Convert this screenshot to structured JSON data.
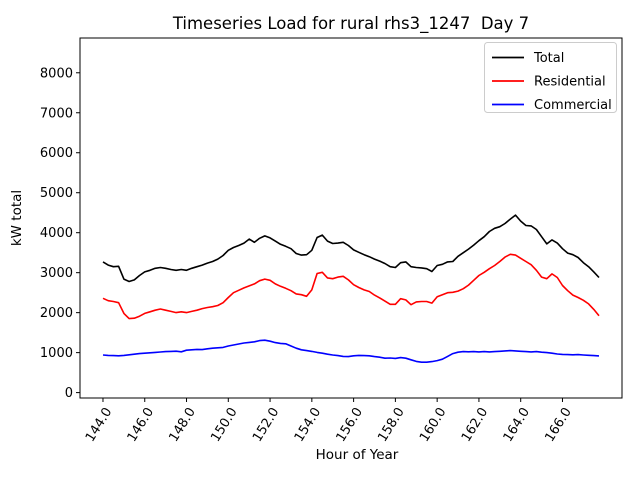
{
  "title": "Timeseries Load for rural rhs3_1247  Day 7",
  "chart_data": {
    "type": "line",
    "title": "Timeseries Load for rural rhs3_1247  Day 7",
    "xlabel": "Hour of Year",
    "ylabel": "kW total",
    "xlim": [
      142.9,
      168.85
    ],
    "ylim": [
      -135,
      8870
    ],
    "grid": false,
    "legend_position": "upper right",
    "xticks": {
      "values": [
        144,
        146,
        148,
        150,
        152,
        154,
        156,
        158,
        160,
        162,
        164,
        166
      ],
      "labels": [
        "144.0",
        "146.0",
        "148.0",
        "150.0",
        "152.0",
        "154.0",
        "156.0",
        "158.0",
        "160.0",
        "162.0",
        "164.0",
        "166.0"
      ]
    },
    "yticks": {
      "values": [
        0,
        1000,
        2000,
        3000,
        4000,
        5000,
        6000,
        7000,
        8000
      ],
      "labels": [
        "0",
        "1000",
        "2000",
        "3000",
        "4000",
        "5000",
        "6000",
        "7000",
        "8000"
      ]
    },
    "x_start": 144.0,
    "x_step": 0.25,
    "series": [
      {
        "name": "Total",
        "color": "#000000",
        "values": [
          3270,
          3190,
          3150,
          3160,
          2840,
          2780,
          2820,
          2930,
          3020,
          3060,
          3110,
          3130,
          3110,
          3080,
          3060,
          3080,
          3060,
          3110,
          3150,
          3190,
          3240,
          3280,
          3340,
          3430,
          3560,
          3630,
          3680,
          3740,
          3840,
          3760,
          3860,
          3920,
          3870,
          3790,
          3710,
          3660,
          3600,
          3480,
          3440,
          3450,
          3560,
          3880,
          3940,
          3790,
          3730,
          3740,
          3760,
          3680,
          3570,
          3510,
          3450,
          3400,
          3340,
          3290,
          3230,
          3150,
          3130,
          3250,
          3270,
          3150,
          3130,
          3120,
          3100,
          3030,
          3180,
          3210,
          3270,
          3280,
          3410,
          3500,
          3590,
          3690,
          3800,
          3900,
          4030,
          4110,
          4150,
          4230,
          4340,
          4440,
          4290,
          4180,
          4170,
          4080,
          3900,
          3720,
          3820,
          3740,
          3600,
          3490,
          3450,
          3380,
          3250,
          3150,
          3020,
          2880
        ]
      },
      {
        "name": "Residential",
        "color": "#ff0000",
        "values": [
          2360,
          2300,
          2280,
          2250,
          1980,
          1850,
          1860,
          1910,
          1980,
          2020,
          2060,
          2090,
          2060,
          2030,
          2000,
          2020,
          2000,
          2030,
          2060,
          2100,
          2130,
          2150,
          2180,
          2250,
          2380,
          2500,
          2560,
          2620,
          2670,
          2720,
          2800,
          2840,
          2810,
          2720,
          2660,
          2610,
          2550,
          2470,
          2450,
          2410,
          2570,
          2980,
          3010,
          2870,
          2850,
          2890,
          2910,
          2820,
          2700,
          2630,
          2570,
          2530,
          2440,
          2370,
          2290,
          2210,
          2210,
          2350,
          2320,
          2200,
          2270,
          2280,
          2280,
          2240,
          2400,
          2450,
          2500,
          2510,
          2540,
          2600,
          2690,
          2810,
          2930,
          3010,
          3100,
          3180,
          3280,
          3390,
          3460,
          3440,
          3360,
          3280,
          3200,
          3060,
          2890,
          2850,
          2970,
          2880,
          2680,
          2550,
          2440,
          2380,
          2310,
          2220,
          2080,
          1920
        ]
      },
      {
        "name": "Commercial",
        "color": "#0000ff",
        "values": [
          940,
          930,
          925,
          920,
          930,
          945,
          960,
          975,
          985,
          995,
          1005,
          1015,
          1025,
          1030,
          1035,
          1020,
          1060,
          1070,
          1080,
          1075,
          1095,
          1110,
          1120,
          1130,
          1165,
          1190,
          1215,
          1240,
          1255,
          1270,
          1300,
          1310,
          1285,
          1250,
          1230,
          1220,
          1165,
          1110,
          1070,
          1050,
          1030,
          1005,
          985,
          960,
          940,
          925,
          905,
          900,
          920,
          930,
          925,
          920,
          900,
          885,
          860,
          865,
          855,
          875,
          860,
          820,
          780,
          760,
          760,
          775,
          800,
          835,
          905,
          975,
          1010,
          1025,
          1020,
          1025,
          1018,
          1025,
          1018,
          1025,
          1033,
          1042,
          1050,
          1042,
          1033,
          1025,
          1018,
          1025,
          1010,
          1000,
          985,
          965,
          955,
          950,
          945,
          950,
          940,
          933,
          925,
          918
        ]
      }
    ]
  },
  "legend": {
    "entries": [
      {
        "label": "Total",
        "color": "#000000"
      },
      {
        "label": "Residential",
        "color": "#ff0000"
      },
      {
        "label": "Commercial",
        "color": "#0000ff"
      }
    ]
  },
  "colors": {
    "axis": "#000000",
    "legend_border": "#cccccc",
    "background": "#ffffff"
  }
}
